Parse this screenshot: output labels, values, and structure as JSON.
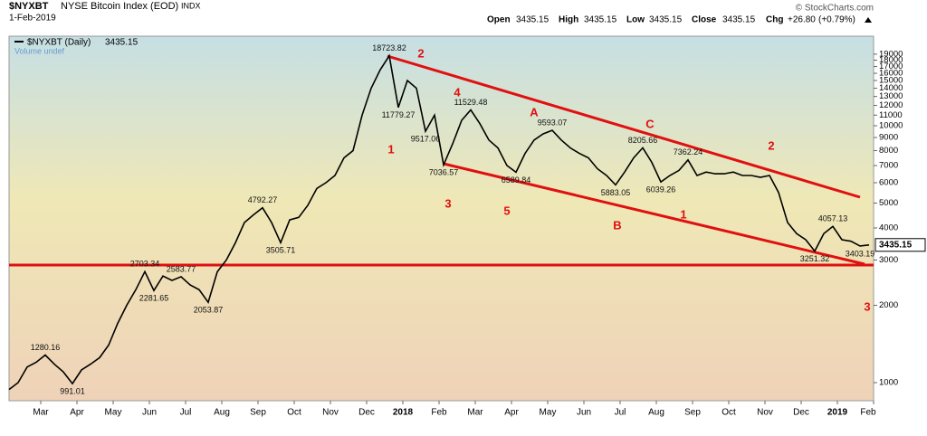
{
  "header": {
    "symbol": "$NYXBT",
    "name": "NYSE Bitcoin Index (EOD)",
    "exchange": "INDX",
    "date": "1-Feb-2019",
    "credit": "© StockCharts.com",
    "open_label": "Open",
    "open": 3435.15,
    "high_label": "High",
    "high": 3435.15,
    "low_label": "Low",
    "low": 3435.15,
    "close_label": "Close",
    "close": 3435.15,
    "chg_label": "Chg",
    "chg": "+26.80",
    "chg_pct": "(+0.79%)"
  },
  "chart_data": {
    "type": "line",
    "log_scale": true,
    "x": [
      0.125,
      0.375,
      0.625,
      0.875,
      1.125,
      1.375,
      1.625,
      1.875,
      2.125,
      2.375,
      2.625,
      2.875,
      3.125,
      3.375,
      3.625,
      3.875,
      4.125,
      4.375,
      4.625,
      4.875,
      5.125,
      5.375,
      5.625,
      5.875,
      6.125,
      6.375,
      6.625,
      6.875,
      7.125,
      7.375,
      7.625,
      7.875,
      8.125,
      8.375,
      8.625,
      8.875,
      9.125,
      9.375,
      9.625,
      9.875,
      10.125,
      10.375,
      10.625,
      10.875,
      11.125,
      11.375,
      11.625,
      11.875,
      12.125,
      12.375,
      12.625,
      12.875,
      13.125,
      13.375,
      13.625,
      13.875,
      14.125,
      14.375,
      14.625,
      14.875,
      15.125,
      15.375,
      15.625,
      15.875,
      16.125,
      16.375,
      16.625,
      16.875,
      17.125,
      17.375,
      17.625,
      17.875,
      18.125,
      18.375,
      18.625,
      18.875,
      19.125,
      19.375,
      19.625,
      19.875,
      20.125,
      20.375,
      20.625,
      20.875,
      21.125,
      21.375,
      21.625,
      21.875,
      22.125,
      22.375,
      22.625,
      22.875,
      23.125,
      23.375,
      23.625,
      23.875
    ],
    "series": [
      {
        "name": "$NYXBT (Daily)",
        "color": "#000000",
        "values": [
          940,
          1000,
          1150,
          1200,
          1280.16,
          1180,
          1100,
          991.01,
          1120,
          1180,
          1250,
          1400,
          1700,
          2000,
          2300,
          2703.34,
          2281.65,
          2600,
          2500,
          2583.77,
          2400,
          2300,
          2053.87,
          2700,
          3000,
          3500,
          4200,
          4500,
          4792.27,
          4200,
          3505.71,
          4300,
          4400,
          4900,
          5700,
          6000,
          6400,
          7500,
          8000,
          11000,
          14000,
          16500,
          18723.82,
          11779.27,
          15000,
          14000,
          9517.06,
          11000,
          7036.57,
          8500,
          10500,
          11529.48,
          10200,
          8800,
          8200,
          7000,
          6589.84,
          7800,
          8800,
          9300,
          9593.07,
          8800,
          8200,
          7800,
          7500,
          6800,
          6400,
          5883.05,
          6600,
          7500,
          8205.66,
          7200,
          6039.26,
          6400,
          6700,
          7362.24,
          6400,
          6600,
          6500,
          6500,
          6600,
          6400,
          6400,
          6300,
          6400,
          5500,
          4200,
          3800,
          3600,
          3251.32,
          3800,
          4057.13,
          3600,
          3550,
          3403.19,
          3435.15
        ],
        "value_labels": [
          null,
          null,
          null,
          null,
          "1280.16",
          null,
          null,
          "991.01",
          null,
          null,
          null,
          null,
          null,
          null,
          null,
          "2703.34",
          "2281.65",
          null,
          null,
          "2583.77",
          null,
          null,
          "2053.87",
          null,
          null,
          null,
          null,
          null,
          "4792.27",
          null,
          "3505.71",
          null,
          null,
          null,
          null,
          null,
          null,
          null,
          null,
          null,
          null,
          null,
          "18723.82",
          "11779.27",
          null,
          null,
          "9517.06",
          null,
          "7036.57",
          null,
          null,
          "11529.48",
          null,
          null,
          null,
          null,
          "6589.84",
          null,
          null,
          null,
          "9593.07",
          null,
          null,
          null,
          null,
          null,
          null,
          "5883.05",
          null,
          null,
          "8205.66",
          null,
          "6039.26",
          null,
          null,
          "7362.24",
          null,
          null,
          null,
          null,
          null,
          null,
          null,
          null,
          null,
          null,
          null,
          null,
          null,
          "3251.32",
          null,
          "4057.13",
          null,
          null,
          "3403.19",
          null
        ]
      }
    ],
    "volume_legend": "Volume undef",
    "annotation_color": "#e01010",
    "annotations": [
      "2",
      "4",
      "A",
      "C",
      "2",
      "1",
      "3",
      "5",
      "B",
      "1",
      "3"
    ],
    "xlim": [
      0.125,
      24
    ],
    "xticks": [
      {
        "value": 1,
        "label": "Mar"
      },
      {
        "value": 2,
        "label": "Apr"
      },
      {
        "value": 3,
        "label": "May"
      },
      {
        "value": 4,
        "label": "Jun"
      },
      {
        "value": 5,
        "label": "Jul"
      },
      {
        "value": 6,
        "label": "Aug"
      },
      {
        "value": 7,
        "label": "Sep"
      },
      {
        "value": 8,
        "label": "Oct"
      },
      {
        "value": 9,
        "label": "Nov"
      },
      {
        "value": 10,
        "label": "Dec"
      },
      {
        "value": 11,
        "label": "2018"
      },
      {
        "value": 12,
        "label": "Feb"
      },
      {
        "value": 13,
        "label": "Mar"
      },
      {
        "value": 14,
        "label": "Apr"
      },
      {
        "value": 15,
        "label": "May"
      },
      {
        "value": 16,
        "label": "Jun"
      },
      {
        "value": 17,
        "label": "Jul"
      },
      {
        "value": 18,
        "label": "Aug"
      },
      {
        "value": 19,
        "label": "Sep"
      },
      {
        "value": 20,
        "label": "Oct"
      },
      {
        "value": 21,
        "label": "Nov"
      },
      {
        "value": 22,
        "label": "Dec"
      },
      {
        "value": 23,
        "label": "2019"
      },
      {
        "value": 24,
        "label": "Feb"
      }
    ],
    "ylim": [
      871,
      20580
    ],
    "yticks": [
      1000,
      2000,
      3000,
      4000,
      5000,
      6000,
      7000,
      8000,
      9000,
      10000,
      11000,
      12000,
      13000,
      14000,
      15000,
      16000,
      17000,
      18000,
      19000
    ],
    "grid": false
  }
}
